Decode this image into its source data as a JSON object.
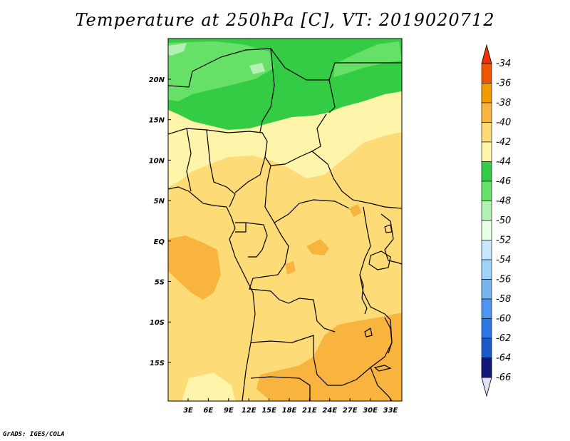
{
  "title": "Temperature at 250hPa [C], VT: 2019020712",
  "credit": "GrADS: IGES/COLA",
  "map": {
    "lat_labels": [
      "20N",
      "15N",
      "10N",
      "5N",
      "EQ",
      "5S",
      "10S",
      "15S"
    ],
    "lon_labels": [
      "3E",
      "6E",
      "9E",
      "12E",
      "15E",
      "18E",
      "21E",
      "24E",
      "27E",
      "30E",
      "33E"
    ]
  },
  "colorbar": {
    "top_label": "-34",
    "levels": [
      {
        "label": "-36",
        "color": "#ee5500"
      },
      {
        "label": "-38",
        "color": "#f39a00"
      },
      {
        "label": "-40",
        "color": "#f9b440"
      },
      {
        "label": "-42",
        "color": "#fddc78"
      },
      {
        "label": "-44",
        "color": "#fff5aa"
      },
      {
        "label": "-46",
        "color": "#33cc44"
      },
      {
        "label": "-48",
        "color": "#66e066"
      },
      {
        "label": "-50",
        "color": "#b4f0b4"
      },
      {
        "label": "-52",
        "color": "#e6ffe6"
      },
      {
        "label": "-54",
        "color": "#c8e6ff"
      },
      {
        "label": "-56",
        "color": "#a0d2fa"
      },
      {
        "label": "-58",
        "color": "#78b4f0"
      },
      {
        "label": "-60",
        "color": "#4a96f0"
      },
      {
        "label": "-62",
        "color": "#2a78e6"
      },
      {
        "label": "-64",
        "color": "#1a5ac8"
      },
      {
        "label": "-66",
        "color": "#0a3cb4"
      }
    ],
    "top_color": "#ee3300",
    "bottom_color": "#101878",
    "lower_tip_color": "#e0e0f8"
  }
}
